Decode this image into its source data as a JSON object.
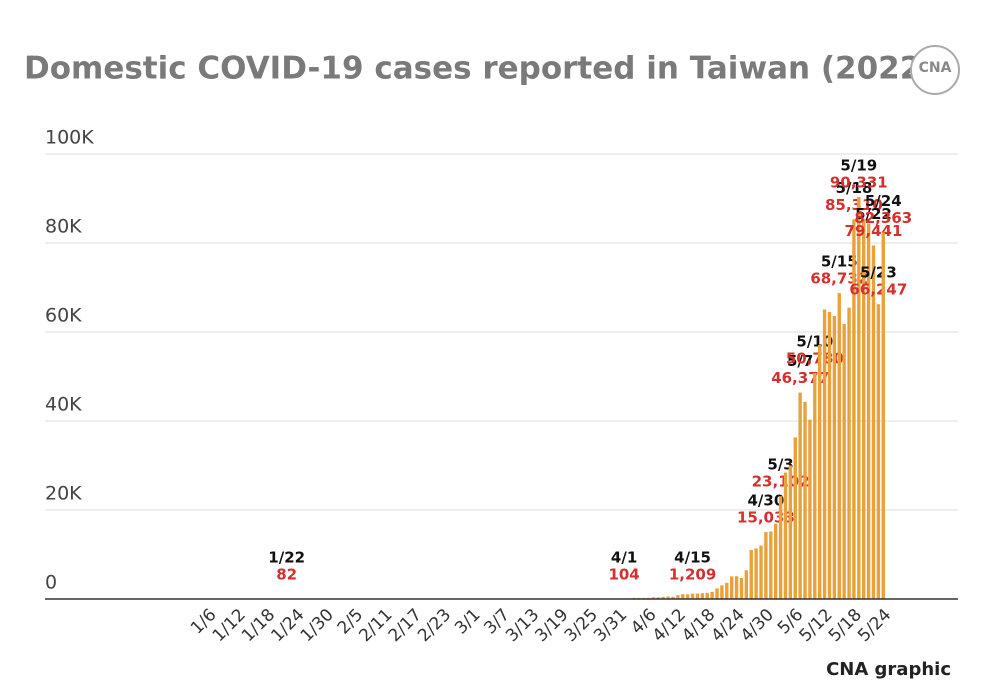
{
  "chart_data": {
    "type": "bar",
    "title": "Domestic COVID-19 cases reported in Taiwan (2022)",
    "source": "CNA graphic",
    "logo": "CNA",
    "color": "#e9a23b",
    "grid": true,
    "ylim": [
      0,
      100000
    ],
    "yticks": [
      0,
      {
        "value": 20000,
        "label": "20K"
      },
      {
        "value": 40000,
        "label": "40K"
      },
      {
        "value": 60000,
        "label": "60K"
      },
      {
        "value": 80000,
        "label": "80K"
      },
      {
        "value": 100000,
        "label": "100K"
      }
    ],
    "categories": [
      null,
      null,
      null,
      null,
      null,
      "1/6",
      null,
      null,
      null,
      null,
      null,
      "1/12",
      null,
      null,
      null,
      null,
      null,
      "1/18",
      null,
      null,
      null,
      null,
      null,
      "1/24",
      null,
      null,
      null,
      null,
      null,
      "1/30",
      null,
      null,
      null,
      null,
      null,
      "2/5",
      null,
      null,
      null,
      null,
      null,
      "2/11",
      null,
      null,
      null,
      null,
      null,
      "2/17",
      null,
      null,
      null,
      null,
      null,
      "2/23",
      null,
      null,
      null,
      null,
      null,
      "3/1",
      null,
      null,
      null,
      null,
      null,
      "3/7",
      null,
      null,
      null,
      null,
      null,
      "3/13",
      null,
      null,
      null,
      null,
      null,
      "3/19",
      null,
      null,
      null,
      null,
      null,
      "3/25",
      null,
      null,
      null,
      null,
      null,
      "3/31",
      null,
      null,
      null,
      null,
      null,
      "4/6",
      null,
      null,
      null,
      null,
      null,
      "4/12",
      null,
      null,
      null,
      null,
      null,
      "4/18",
      null,
      null,
      null,
      null,
      null,
      "4/24",
      null,
      null,
      null,
      null,
      null,
      "4/30",
      null,
      null,
      null,
      null,
      null,
      "5/6",
      null,
      null,
      null,
      null,
      null,
      "5/12",
      null,
      null,
      null,
      null,
      null,
      "5/18",
      null,
      null,
      null,
      null,
      null,
      "5/24"
    ],
    "values": [
      1,
      0,
      0,
      0,
      1,
      3,
      2,
      5,
      15,
      8,
      10,
      20,
      6,
      11,
      20,
      19,
      10,
      25,
      18,
      20,
      30,
      82,
      15,
      13,
      10,
      6,
      12,
      9,
      10,
      8,
      5,
      3,
      5,
      8,
      4,
      6,
      10,
      12,
      15,
      9,
      7,
      11,
      14,
      8,
      6,
      10,
      13,
      9,
      12,
      15,
      20,
      18,
      16,
      14,
      22,
      25,
      30,
      28,
      26,
      24,
      20,
      18,
      22,
      27,
      30,
      25,
      20,
      28,
      32,
      35,
      30,
      26,
      40,
      45,
      38,
      42,
      50,
      48,
      55,
      60,
      52,
      58,
      65,
      70,
      75,
      80,
      85,
      90,
      95,
      100,
      104,
      155,
      242,
      231,
      237,
      266,
      380,
      382,
      485,
      566,
      510,
      864,
      1079,
      1050,
      1209,
      1219,
      1312,
      1371,
      1586,
      2386,
      3077,
      3627,
      5084,
      5125,
      4719,
      6456,
      10999,
      11352,
      12003,
      15033,
      15157,
      16930,
      23102,
      28416,
      29995,
      36315,
      46377,
      44311,
      40301,
      50780,
      57079,
      65061,
      64509,
      63607,
      68732,
      61834,
      65473,
      85310,
      90331,
      85436,
      84377,
      79441,
      66247,
      82363
    ],
    "point_labels": [
      null,
      null,
      null,
      null,
      null,
      null,
      null,
      null,
      null,
      null,
      null,
      null,
      null,
      null,
      null,
      null,
      null,
      null,
      null,
      null,
      null,
      "1/22",
      null,
      null,
      null,
      null,
      null,
      null,
      null,
      null,
      null,
      null,
      null,
      null,
      null,
      null,
      null,
      null,
      null,
      null,
      null,
      null,
      null,
      null,
      null,
      null,
      null,
      null,
      null,
      null,
      null,
      null,
      null,
      null,
      null,
      null,
      null,
      null,
      null,
      null,
      null,
      null,
      null,
      null,
      null,
      null,
      null,
      null,
      null,
      null,
      null,
      null,
      null,
      null,
      null,
      null,
      null,
      null,
      null,
      null,
      null,
      null,
      null,
      null,
      null,
      null,
      null,
      null,
      null,
      null,
      "4/1",
      null,
      null,
      null,
      null,
      null,
      null,
      null,
      null,
      null,
      null,
      null,
      null,
      null,
      "4/15",
      null,
      null,
      null,
      null,
      null,
      null,
      null,
      null,
      null,
      null,
      null,
      null,
      null,
      null,
      "4/30",
      null,
      null,
      "5/3",
      null,
      null,
      null,
      "5/7",
      null,
      null,
      "5/10",
      null,
      null,
      null,
      null,
      "5/15",
      null,
      null,
      "5/18",
      "5/19",
      null,
      null,
      "5/22",
      "5/23",
      "5/24"
    ],
    "value_labels": [
      null,
      null,
      null,
      null,
      null,
      null,
      null,
      null,
      null,
      null,
      null,
      null,
      null,
      null,
      null,
      null,
      null,
      null,
      null,
      null,
      null,
      "82",
      null,
      null,
      null,
      null,
      null,
      null,
      null,
      null,
      null,
      null,
      null,
      null,
      null,
      null,
      null,
      null,
      null,
      null,
      null,
      null,
      null,
      null,
      null,
      null,
      null,
      null,
      null,
      null,
      null,
      null,
      null,
      null,
      null,
      null,
      null,
      null,
      null,
      null,
      null,
      null,
      null,
      null,
      null,
      null,
      null,
      null,
      null,
      null,
      null,
      null,
      null,
      null,
      null,
      null,
      null,
      null,
      null,
      null,
      null,
      null,
      null,
      null,
      null,
      null,
      null,
      null,
      null,
      null,
      "104",
      null,
      null,
      null,
      null,
      null,
      null,
      null,
      null,
      null,
      null,
      null,
      null,
      null,
      "1,209",
      null,
      null,
      null,
      null,
      null,
      null,
      null,
      null,
      null,
      null,
      null,
      null,
      null,
      null,
      "15,033",
      null,
      null,
      "23,102",
      null,
      null,
      null,
      "46,377",
      null,
      null,
      "50,780",
      null,
      null,
      null,
      null,
      "68,732",
      null,
      null,
      "85,310",
      "90,331",
      null,
      null,
      "79,441",
      "66,247",
      "82,363"
    ]
  }
}
